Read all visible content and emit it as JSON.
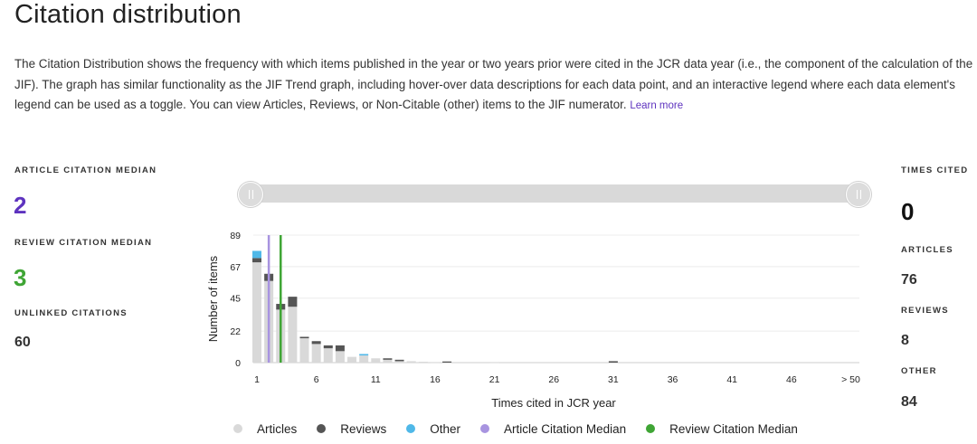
{
  "page": {
    "title": "Citation distribution",
    "description": "The Citation Distribution shows the frequency with which items published in the year or two years prior were cited in the JCR data year (i.e., the component of the calculation of the JIF). The graph has similar functionality as the JIF Trend graph, including hover-over data descriptions for each data point, and an interactive legend where each data element's legend can be used as a toggle. You can view Articles, Reviews, or Non-Citable (other) items to the JIF numerator.",
    "learn_more": "Learn more"
  },
  "left_stats": {
    "article_median_label": "ARTICLE CITATION MEDIAN",
    "article_median_value": "2",
    "review_median_label": "REVIEW CITATION MEDIAN",
    "review_median_value": "3",
    "unlinked_label": "UNLINKED CITATIONS",
    "unlinked_value": "60"
  },
  "right_stats": {
    "times_cited_label": "TIMES CITED",
    "times_cited_value": "0",
    "articles_label": "ARTICLES",
    "articles_value": "76",
    "reviews_label": "REVIEWS",
    "reviews_value": "8",
    "other_label": "OTHER",
    "other_value": "84"
  },
  "colors": {
    "articles": "#d9d9d9",
    "reviews": "#555555",
    "other": "#4fb8e8",
    "article_median": "#a894e0",
    "review_median": "#3fa535",
    "article_median_text": "#5e33bf",
    "review_median_text": "#3fa535"
  },
  "chart_data": {
    "type": "bar",
    "stacked": true,
    "x": [
      1,
      2,
      3,
      4,
      5,
      6,
      7,
      8,
      9,
      10,
      11,
      12,
      13,
      14,
      15,
      16,
      17,
      18,
      19,
      20,
      21,
      22,
      23,
      24,
      25,
      26,
      27,
      28,
      29,
      30,
      31
    ],
    "x_tick_labels": [
      "1",
      "6",
      "11",
      "16",
      "21",
      "26",
      "31",
      "36",
      "41",
      "46",
      "> 50"
    ],
    "xlabel": "Times cited in JCR year",
    "ylabel": "Number of items",
    "y_ticks": [
      0,
      22,
      45,
      67,
      89
    ],
    "ylim": [
      0,
      89
    ],
    "series": [
      {
        "name": "Articles",
        "values": [
          70,
          57,
          37,
          39,
          17,
          13,
          10,
          8,
          4,
          5,
          3,
          2,
          1,
          1,
          0.6,
          0.4,
          0,
          0,
          0,
          0,
          0.4,
          0,
          0,
          0,
          0,
          0,
          0,
          0,
          0,
          0,
          0
        ]
      },
      {
        "name": "Reviews",
        "values": [
          3,
          5,
          4,
          7,
          1,
          2,
          2,
          4,
          0,
          0,
          0,
          1,
          1,
          0,
          0,
          0,
          0.8,
          0,
          0,
          0,
          0,
          0,
          0,
          0,
          0,
          0,
          0,
          0,
          0,
          0,
          1
        ]
      },
      {
        "name": "Other",
        "values": [
          5,
          0,
          0,
          0,
          0,
          0,
          0,
          0,
          0,
          1,
          0,
          0,
          0,
          0,
          0,
          0,
          0,
          0,
          0,
          0,
          0,
          0,
          0,
          0,
          0,
          0,
          0,
          0,
          0,
          0,
          0
        ]
      }
    ],
    "markers": [
      {
        "name": "Article Citation Median",
        "x": 2
      },
      {
        "name": "Review Citation Median",
        "x": 3
      }
    ],
    "legend": [
      "Articles",
      "Reviews",
      "Other",
      "Article Citation Median",
      "Review Citation Median"
    ],
    "legend_position": "bottom",
    "grid": true
  }
}
